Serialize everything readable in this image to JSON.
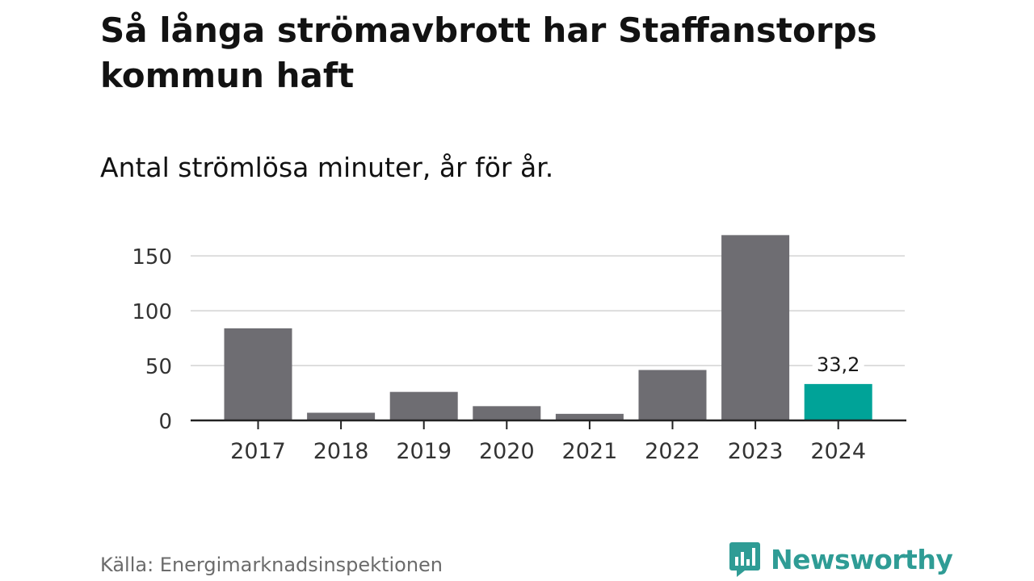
{
  "title": "Så långa strömavbrott har Staffanstorps kommun haft",
  "subtitle": "Antal strömlösa minuter, år för år.",
  "source": "Källa: Energimarknadsinspektionen",
  "brand": {
    "name": "Newsworthy",
    "icon": "newsworthy-logo-icon",
    "color": "#2f9c95"
  },
  "colors": {
    "bar": "#6e6d72",
    "highlight": "#00a398",
    "grid": "#dddddd",
    "axis": "#222222"
  },
  "chart_data": {
    "type": "bar",
    "title": "Så långa strömavbrott har Staffanstorps kommun haft",
    "subtitle": "Antal strömlösa minuter, år för år.",
    "xlabel": "",
    "ylabel": "",
    "categories": [
      "2017",
      "2018",
      "2019",
      "2020",
      "2021",
      "2022",
      "2023",
      "2024"
    ],
    "values": [
      84,
      7,
      26,
      13,
      6,
      46,
      169,
      33.2
    ],
    "highlight_index": 7,
    "data_labels": [
      "",
      "",
      "",
      "",
      "",
      "",
      "",
      "33,2"
    ],
    "ylim": [
      0,
      170
    ],
    "yticks": [
      0,
      50,
      100,
      150
    ],
    "grid": true,
    "legend": "none"
  }
}
